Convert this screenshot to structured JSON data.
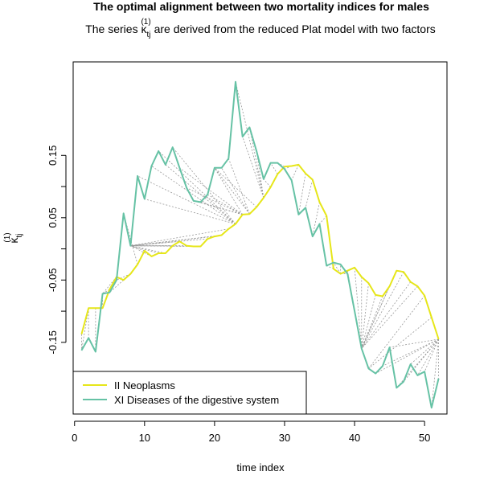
{
  "chart_data": {
    "type": "line",
    "title": "The optimal alignment between two mortality indices for males",
    "subtitle": {
      "before": "The series ",
      "symbol": "κ",
      "subscript": "tj",
      "superscript": "(1)",
      "after": " are derived from the reduced Plat model with two factors"
    },
    "xlabel": "time index",
    "ylabel": {
      "symbol": "κ",
      "subscript": "tj",
      "superscript": "(1)"
    },
    "xlim": [
      -0.2,
      53.2
    ],
    "ylim": [
      -0.265,
      0.3
    ],
    "x_ticks": [
      0,
      10,
      20,
      30,
      40,
      50
    ],
    "y_ticks": [
      0.15,
      0.1,
      0.05,
      0.0,
      -0.05,
      -0.1,
      -0.15
    ],
    "y_tick_labels": [
      "0.15",
      "",
      "0.05",
      "",
      "-0.05",
      "",
      "-0.15"
    ],
    "grid": false,
    "legend_position": "bottom-left",
    "series": [
      {
        "name": "II Neoplasms",
        "color": "#e6e619",
        "x": [
          1,
          2,
          3,
          4,
          5,
          6,
          7,
          8,
          9,
          10,
          11,
          12,
          13,
          14,
          15,
          16,
          17,
          18,
          19,
          20,
          21,
          22,
          23,
          24,
          25,
          26,
          27,
          28,
          29,
          30,
          31,
          32,
          33,
          34,
          35,
          36,
          37,
          38,
          39,
          40,
          41,
          42,
          43,
          44,
          45,
          46,
          47,
          48,
          49,
          50,
          51,
          52
        ],
        "values": [
          -0.137,
          -0.095,
          -0.095,
          -0.095,
          -0.065,
          -0.045,
          -0.05,
          -0.04,
          -0.025,
          -0.003,
          -0.012,
          -0.007,
          -0.007,
          0.005,
          0.012,
          0.005,
          0.004,
          0.004,
          0.016,
          0.02,
          0.022,
          0.032,
          0.04,
          0.055,
          0.056,
          0.067,
          0.082,
          0.099,
          0.12,
          0.132,
          0.133,
          0.135,
          0.121,
          0.111,
          0.075,
          0.053,
          -0.032,
          -0.04,
          -0.035,
          -0.03,
          -0.045,
          -0.055,
          -0.074,
          -0.076,
          -0.06,
          -0.035,
          -0.037,
          -0.053,
          -0.06,
          -0.075,
          -0.11,
          -0.145
        ]
      },
      {
        "name": "XI Diseases of the digestive system",
        "color": "#66c2a5",
        "x": [
          1,
          2,
          3,
          4,
          5,
          6,
          7,
          8,
          9,
          10,
          11,
          12,
          13,
          14,
          15,
          16,
          17,
          18,
          19,
          20,
          21,
          22,
          23,
          24,
          25,
          26,
          27,
          28,
          29,
          30,
          31,
          32,
          33,
          34,
          35,
          36,
          37,
          38,
          39,
          40,
          41,
          42,
          43,
          44,
          45,
          46,
          47,
          48,
          49,
          50,
          51,
          52
        ],
        "values": [
          -0.163,
          -0.143,
          -0.165,
          -0.072,
          -0.07,
          -0.05,
          0.057,
          0.005,
          0.117,
          0.08,
          0.133,
          0.157,
          0.135,
          0.163,
          0.13,
          0.098,
          0.077,
          0.075,
          0.087,
          0.13,
          0.13,
          0.145,
          0.268,
          0.18,
          0.195,
          0.157,
          0.112,
          0.138,
          0.138,
          0.128,
          0.11,
          0.055,
          0.066,
          0.02,
          0.04,
          -0.027,
          -0.022,
          -0.025,
          -0.04,
          -0.1,
          -0.16,
          -0.192,
          -0.2,
          -0.188,
          -0.158,
          -0.223,
          -0.213,
          -0.185,
          -0.203,
          -0.197,
          -0.255,
          -0.208
        ]
      }
    ],
    "alignment_pairs": [
      [
        1,
        1
      ],
      [
        2,
        1
      ],
      [
        2,
        2
      ],
      [
        3,
        3
      ],
      [
        4,
        4
      ],
      [
        5,
        4
      ],
      [
        6,
        4
      ],
      [
        7,
        5
      ],
      [
        8,
        6
      ],
      [
        9,
        7
      ],
      [
        10,
        8
      ],
      [
        11,
        8
      ],
      [
        12,
        8
      ],
      [
        13,
        8
      ],
      [
        14,
        8
      ],
      [
        15,
        8
      ],
      [
        16,
        8
      ],
      [
        17,
        8
      ],
      [
        18,
        8
      ],
      [
        19,
        8
      ],
      [
        20,
        8
      ],
      [
        21,
        8
      ],
      [
        22,
        8
      ],
      [
        23,
        9
      ],
      [
        23,
        10
      ],
      [
        23,
        11
      ],
      [
        23,
        12
      ],
      [
        23,
        13
      ],
      [
        23,
        14
      ],
      [
        24,
        15
      ],
      [
        24,
        16
      ],
      [
        24,
        17
      ],
      [
        24,
        18
      ],
      [
        24,
        19
      ],
      [
        24,
        20
      ],
      [
        25,
        20
      ],
      [
        25,
        21
      ],
      [
        25,
        22
      ],
      [
        26,
        20
      ],
      [
        27,
        23
      ],
      [
        27,
        24
      ],
      [
        27,
        25
      ],
      [
        27,
        26
      ],
      [
        28,
        27
      ],
      [
        29,
        28
      ],
      [
        30,
        29
      ],
      [
        31,
        30
      ],
      [
        32,
        31
      ],
      [
        33,
        32
      ],
      [
        34,
        33
      ],
      [
        35,
        34
      ],
      [
        36,
        35
      ],
      [
        37,
        36
      ],
      [
        38,
        37
      ],
      [
        38,
        38
      ],
      [
        38,
        39
      ],
      [
        39,
        40
      ],
      [
        40,
        41
      ],
      [
        41,
        41
      ],
      [
        42,
        41
      ],
      [
        43,
        41
      ],
      [
        44,
        41
      ],
      [
        45,
        41
      ],
      [
        46,
        41
      ],
      [
        47,
        41
      ],
      [
        48,
        41
      ],
      [
        49,
        41
      ],
      [
        50,
        42
      ],
      [
        51,
        42
      ],
      [
        52,
        43
      ],
      [
        52,
        44
      ],
      [
        52,
        45
      ],
      [
        52,
        46
      ],
      [
        52,
        47
      ],
      [
        52,
        48
      ],
      [
        52,
        49
      ],
      [
        52,
        50
      ],
      [
        52,
        51
      ],
      [
        52,
        52
      ]
    ]
  }
}
